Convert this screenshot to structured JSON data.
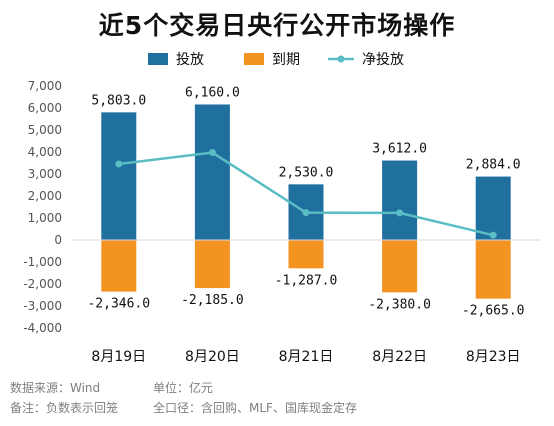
{
  "chart_data": {
    "type": "bar",
    "title": "近5个交易日央行公开市场操作",
    "categories": [
      "8月19日",
      "8月20日",
      "8月21日",
      "8月22日",
      "8月23日"
    ],
    "series": [
      {
        "name": "投放",
        "kind": "bar",
        "values": [
          5803.0,
          6160.0,
          2530.0,
          3612.0,
          2884.0
        ],
        "labels": [
          "5,803.0",
          "6,160.0",
          "2,530.0",
          "3,612.0",
          "2,884.0"
        ]
      },
      {
        "name": "到期",
        "kind": "bar",
        "values": [
          -2346.0,
          -2185.0,
          -1287.0,
          -2380.0,
          -2665.0
        ],
        "labels": [
          "-2,346.0",
          "-2,185.0",
          "-1,287.0",
          "-2,380.0",
          "-2,665.0"
        ]
      },
      {
        "name": "净投放",
        "kind": "line",
        "values": [
          3457.0,
          3975.0,
          1243.0,
          1232.0,
          219.0
        ]
      }
    ],
    "ylim": [
      -4000,
      7000
    ],
    "yticks": [
      -4000,
      -3000,
      -2000,
      -1000,
      0,
      1000,
      2000,
      3000,
      4000,
      5000,
      6000,
      7000
    ],
    "ytick_labels": [
      "-4,000",
      "-3,000",
      "-2,000",
      "-1,000",
      "0",
      "1,000",
      "2,000",
      "3,000",
      "4,000",
      "5,000",
      "6,000",
      "7,000"
    ],
    "xlabel": "",
    "ylabel": "",
    "legend_position": "top",
    "grid": false,
    "colors": {
      "投放": "#1f6f9f",
      "到期": "#f39322",
      "净投放": "#5bbdc4"
    }
  },
  "footer": {
    "source": "数据来源：Wind",
    "unit": "单位：亿元",
    "note": "备注：负数表示回笼",
    "scope": "全口径：含回购、MLF、国库现金定存"
  }
}
